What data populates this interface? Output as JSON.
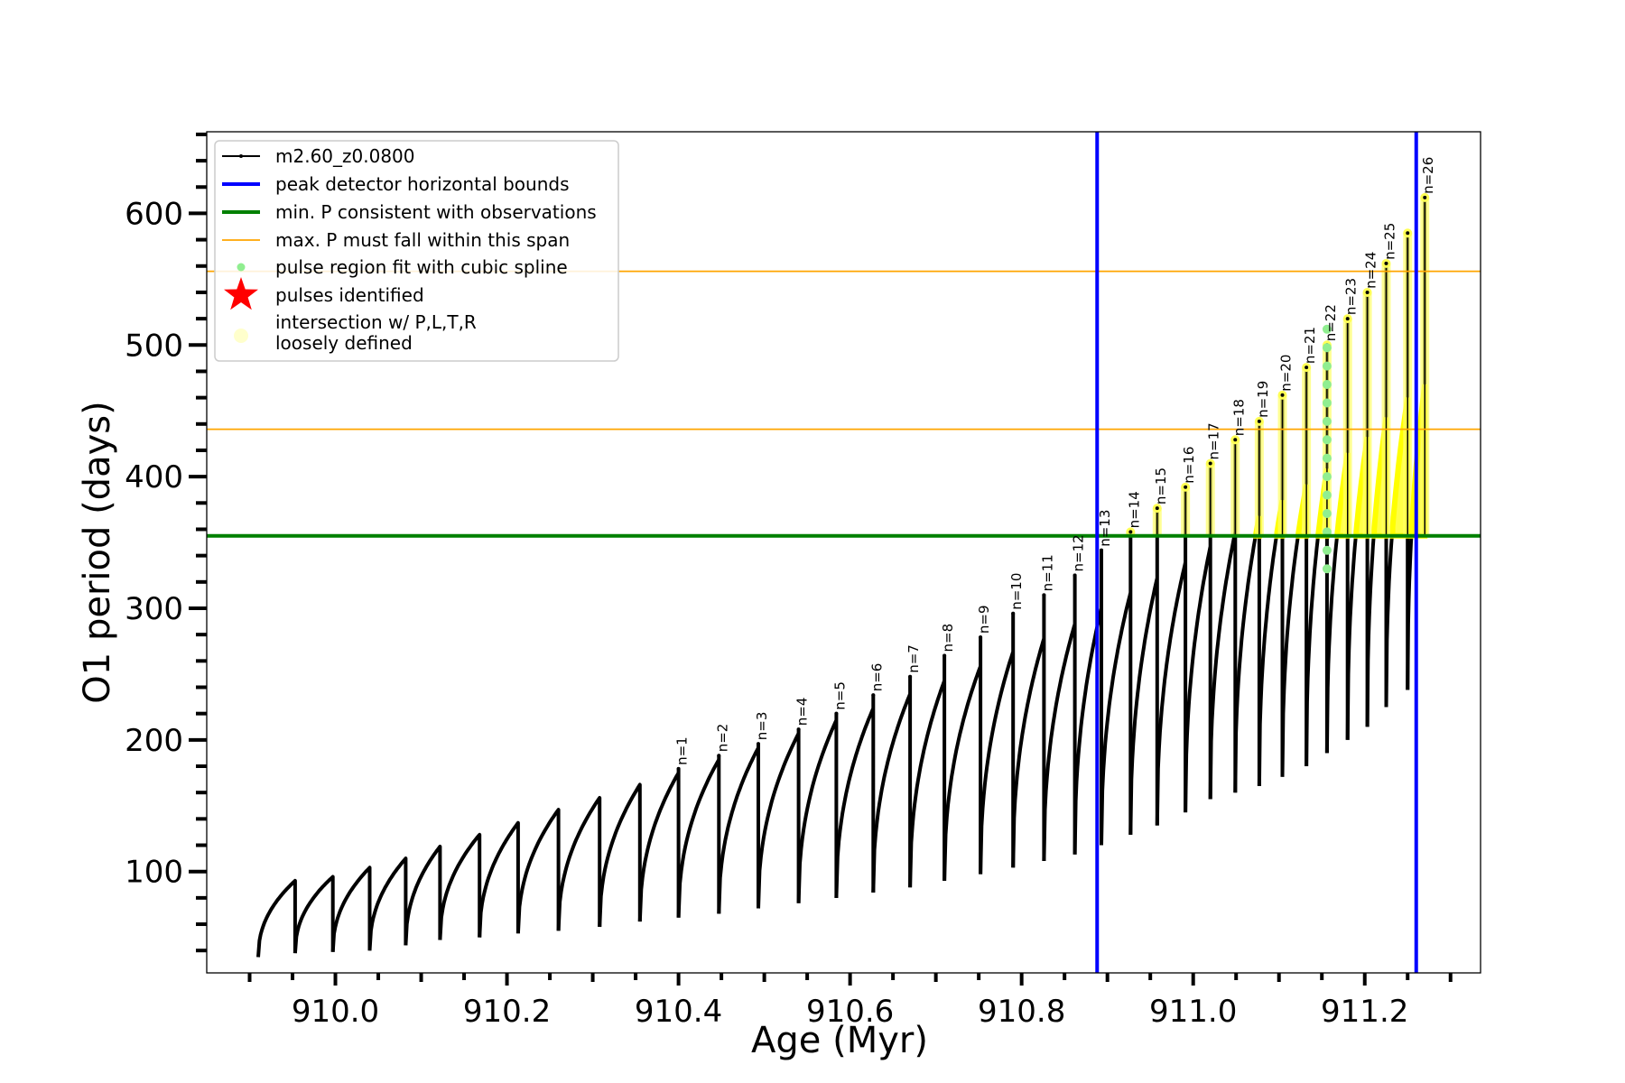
{
  "chart_data": {
    "type": "line",
    "xlabel": "Age (Myr)",
    "ylabel": "O1 period (days)",
    "xlim": [
      909.85,
      911.335
    ],
    "ylim": [
      23,
      662
    ],
    "xticks": [
      910.0,
      910.2,
      910.4,
      910.6,
      910.8,
      911.0,
      911.2
    ],
    "xtick_labels": [
      "910.0",
      "910.2",
      "910.4",
      "910.6",
      "910.8",
      "911.0",
      "911.2"
    ],
    "yticks": [
      100,
      200,
      300,
      400,
      500,
      600
    ],
    "ytick_labels": [
      "100",
      "200",
      "300",
      "400",
      "500",
      "600"
    ],
    "legend_position": "top-left",
    "legend": [
      {
        "label": "m2.60_z0.0800",
        "color": "#000000",
        "kind": "line-marker"
      },
      {
        "label": "peak detector horizontal bounds",
        "color": "#0000ff",
        "kind": "line"
      },
      {
        "label": "min. P consistent with observations",
        "color": "#008000",
        "kind": "line"
      },
      {
        "label": "max. P must fall within this span",
        "color": "#ffa500",
        "kind": "thin-line"
      },
      {
        "label": "pulse region fit with cubic spline",
        "color": "#90ee90",
        "kind": "dot"
      },
      {
        "label": "pulses identified",
        "color": "#ff0000",
        "kind": "star"
      },
      {
        "label": "intersection w/ P,L,T,R",
        "label2": "loosely defined",
        "color": "#ffffcc",
        "kind": "circle"
      }
    ],
    "vertical_lines": [
      {
        "x": 910.888,
        "color": "#0000ff"
      },
      {
        "x": 911.26,
        "color": "#0000ff"
      }
    ],
    "horizontal_lines": [
      {
        "y": 355,
        "color": "#008000"
      },
      {
        "y": 556,
        "color": "#ffa500"
      },
      {
        "y": 436,
        "color": "#ffa500"
      }
    ],
    "cycles": [
      {
        "x_start": 909.91,
        "x_end": 909.953,
        "p_min": 35,
        "p_max": 93,
        "spike": 0,
        "label": ""
      },
      {
        "x_start": 909.953,
        "x_end": 909.997,
        "p_min": 38,
        "p_max": 96,
        "spike": 0,
        "label": ""
      },
      {
        "x_start": 909.997,
        "x_end": 910.04,
        "p_min": 39,
        "p_max": 103,
        "spike": 0,
        "label": ""
      },
      {
        "x_start": 910.04,
        "x_end": 910.082,
        "p_min": 40,
        "p_max": 110,
        "spike": 0,
        "label": ""
      },
      {
        "x_start": 910.082,
        "x_end": 910.122,
        "p_min": 44,
        "p_max": 119,
        "spike": 0,
        "label": ""
      },
      {
        "x_start": 910.122,
        "x_end": 910.168,
        "p_min": 48,
        "p_max": 128,
        "spike": 0,
        "label": ""
      },
      {
        "x_start": 910.168,
        "x_end": 910.213,
        "p_min": 50,
        "p_max": 137,
        "spike": 0,
        "label": ""
      },
      {
        "x_start": 910.213,
        "x_end": 910.26,
        "p_min": 53,
        "p_max": 147,
        "spike": 0,
        "label": ""
      },
      {
        "x_start": 910.26,
        "x_end": 910.308,
        "p_min": 55,
        "p_max": 156,
        "spike": 0,
        "label": ""
      },
      {
        "x_start": 910.308,
        "x_end": 910.355,
        "p_min": 58,
        "p_max": 166,
        "spike": 0,
        "label": ""
      },
      {
        "x_start": 910.355,
        "x_end": 910.4,
        "p_min": 62,
        "p_max": 175,
        "spike": 178,
        "label": "n=1"
      },
      {
        "x_start": 910.4,
        "x_end": 910.447,
        "p_min": 65,
        "p_max": 185,
        "spike": 188,
        "label": "n=2"
      },
      {
        "x_start": 910.447,
        "x_end": 910.493,
        "p_min": 68,
        "p_max": 194,
        "spike": 197,
        "label": "n=3"
      },
      {
        "x_start": 910.493,
        "x_end": 910.54,
        "p_min": 72,
        "p_max": 205,
        "spike": 208,
        "label": "n=4"
      },
      {
        "x_start": 910.54,
        "x_end": 910.584,
        "p_min": 76,
        "p_max": 215,
        "spike": 220,
        "label": "n=5"
      },
      {
        "x_start": 910.584,
        "x_end": 910.627,
        "p_min": 80,
        "p_max": 224,
        "spike": 234,
        "label": "n=6"
      },
      {
        "x_start": 910.627,
        "x_end": 910.67,
        "p_min": 84,
        "p_max": 235,
        "spike": 248,
        "label": "n=7"
      },
      {
        "x_start": 910.67,
        "x_end": 910.71,
        "p_min": 88,
        "p_max": 245,
        "spike": 264,
        "label": "n=8"
      },
      {
        "x_start": 910.71,
        "x_end": 910.752,
        "p_min": 93,
        "p_max": 256,
        "spike": 278,
        "label": "n=9"
      },
      {
        "x_start": 910.752,
        "x_end": 910.79,
        "p_min": 98,
        "p_max": 267,
        "spike": 296,
        "label": "n=10"
      },
      {
        "x_start": 910.79,
        "x_end": 910.826,
        "p_min": 103,
        "p_max": 277,
        "spike": 310,
        "label": "n=11"
      },
      {
        "x_start": 910.826,
        "x_end": 910.862,
        "p_min": 108,
        "p_max": 288,
        "spike": 325,
        "label": "n=12"
      },
      {
        "x_start": 910.862,
        "x_end": 910.893,
        "p_min": 113,
        "p_max": 300,
        "spike": 344,
        "label": "n=13"
      },
      {
        "x_start": 910.893,
        "x_end": 910.927,
        "p_min": 120,
        "p_max": 312,
        "spike": 358,
        "label": "n=14"
      },
      {
        "x_start": 910.927,
        "x_end": 910.958,
        "p_min": 128,
        "p_max": 323,
        "spike": 376,
        "label": "n=15"
      },
      {
        "x_start": 910.958,
        "x_end": 910.991,
        "p_min": 135,
        "p_max": 335,
        "spike": 392,
        "label": "n=16"
      },
      {
        "x_start": 910.991,
        "x_end": 911.02,
        "p_min": 145,
        "p_max": 347,
        "spike": 410,
        "label": "n=17"
      },
      {
        "x_start": 911.02,
        "x_end": 911.049,
        "p_min": 155,
        "p_max": 358,
        "spike": 428,
        "label": "n=18"
      },
      {
        "x_start": 911.049,
        "x_end": 911.077,
        "p_min": 160,
        "p_max": 370,
        "spike": 442,
        "label": "n=19"
      },
      {
        "x_start": 911.077,
        "x_end": 911.104,
        "p_min": 165,
        "p_max": 382,
        "spike": 462,
        "label": "n=20"
      },
      {
        "x_start": 911.104,
        "x_end": 911.132,
        "p_min": 172,
        "p_max": 394,
        "spike": 483,
        "label": "n=21"
      },
      {
        "x_start": 911.132,
        "x_end": 911.156,
        "p_min": 180,
        "p_max": 406,
        "spike": 500,
        "label": "n=22"
      },
      {
        "x_start": 911.156,
        "x_end": 911.18,
        "p_min": 190,
        "p_max": 418,
        "spike": 520,
        "label": "n=23"
      },
      {
        "x_start": 911.18,
        "x_end": 911.203,
        "p_min": 200,
        "p_max": 430,
        "spike": 540,
        "label": "n=24"
      },
      {
        "x_start": 911.203,
        "x_end": 911.225,
        "p_min": 210,
        "p_max": 445,
        "spike": 562,
        "label": "n=25"
      },
      {
        "x_start": 911.225,
        "x_end": 911.25,
        "p_min": 225,
        "p_max": 460,
        "spike": 585,
        "label": ""
      },
      {
        "x_start": 911.25,
        "x_end": 911.27,
        "p_min": 238,
        "p_max": 470,
        "spike": 612,
        "label": "n=26"
      }
    ]
  }
}
